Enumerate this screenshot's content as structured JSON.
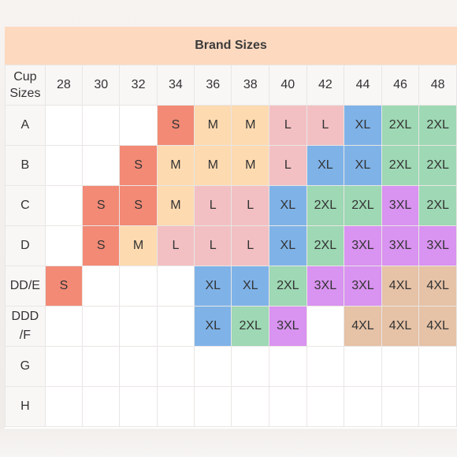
{
  "title": "Brand Sizes",
  "corner_label": [
    "Cup",
    "Sizes"
  ],
  "columns": [
    "28",
    "30",
    "32",
    "34",
    "36",
    "38",
    "40",
    "42",
    "44",
    "46",
    "48"
  ],
  "colors": {
    "S": "#f28a76",
    "M": "#fddab0",
    "L": "#f2c0c3",
    "XL": "#7fb3e8",
    "2XL": "#9ed8b4",
    "3XL": "#d993f0",
    "4XL": "#e6c2a6",
    "empty": "#ffffff"
  },
  "rows": [
    {
      "label": [
        "A"
      ],
      "cells": [
        "",
        "",
        "",
        "S",
        "M",
        "M",
        "L",
        "L",
        "XL",
        "2XL",
        "2XL"
      ]
    },
    {
      "label": [
        "B"
      ],
      "cells": [
        "",
        "",
        "S",
        "M",
        "M",
        "M",
        "L",
        "XL",
        "XL",
        "2XL",
        "2XL"
      ]
    },
    {
      "label": [
        "C"
      ],
      "cells": [
        "",
        "S",
        "S",
        "M",
        "L",
        "L",
        "XL",
        "2XL",
        "2XL",
        "3XL",
        "2XL"
      ]
    },
    {
      "label": [
        "D"
      ],
      "cells": [
        "",
        "S",
        "M",
        "L",
        "L",
        "L",
        "XL",
        "2XL",
        "3XL",
        "3XL",
        "3XL"
      ]
    },
    {
      "label": [
        "DD/E"
      ],
      "cells": [
        "S",
        "",
        "",
        "",
        "XL",
        "XL",
        "2XL",
        "3XL",
        "3XL",
        "4XL",
        "4XL"
      ]
    },
    {
      "label": [
        "DDD",
        "/F"
      ],
      "cells": [
        "",
        "",
        "",
        "",
        "XL",
        "2XL",
        "3XL",
        "",
        "4XL",
        "4XL",
        "4XL"
      ]
    },
    {
      "label": [
        "G"
      ],
      "cells": [
        "",
        "",
        "",
        "",
        "",
        "",
        "",
        "",
        "",
        "",
        ""
      ]
    },
    {
      "label": [
        "H"
      ],
      "cells": [
        "",
        "",
        "",
        "",
        "",
        "",
        "",
        "",
        "",
        "",
        ""
      ]
    }
  ]
}
